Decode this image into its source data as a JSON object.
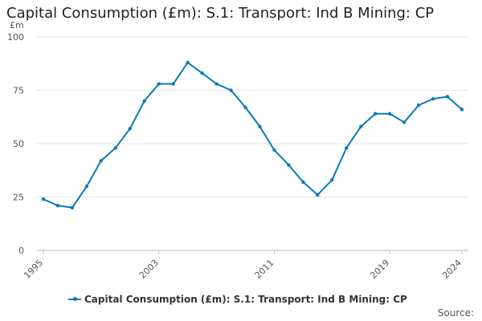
{
  "chart_data": {
    "type": "line",
    "title": "Capital Consumption (£m): S.1: Transport: Ind B Mining: CP",
    "unit_label": "£m",
    "x": [
      1995,
      1996,
      1997,
      1998,
      1999,
      2000,
      2001,
      2002,
      2003,
      2004,
      2005,
      2006,
      2007,
      2008,
      2009,
      2010,
      2011,
      2012,
      2013,
      2014,
      2015,
      2016,
      2017,
      2018,
      2019,
      2020,
      2021,
      2022,
      2023,
      2024
    ],
    "series": [
      {
        "name": "Capital Consumption (£m): S.1: Transport: Ind B Mining: CP",
        "values": [
          24,
          21,
          20,
          30,
          42,
          48,
          57,
          70,
          78,
          78,
          88,
          83,
          78,
          75,
          67,
          58,
          47,
          40,
          32,
          26,
          33,
          48,
          58,
          64,
          64,
          60,
          68,
          71,
          72,
          66
        ],
        "color": "#0a7ab8"
      }
    ],
    "x_ticks": [
      "1995",
      "2003",
      "2011",
      "2019",
      "2024"
    ],
    "y_ticks": [
      "0",
      "25",
      "50",
      "75",
      "100"
    ],
    "ylim": [
      0,
      100
    ],
    "xlim": [
      1995,
      2024
    ],
    "grid": "horizontal",
    "legend_position": "bottom"
  },
  "source_label": "Source:"
}
